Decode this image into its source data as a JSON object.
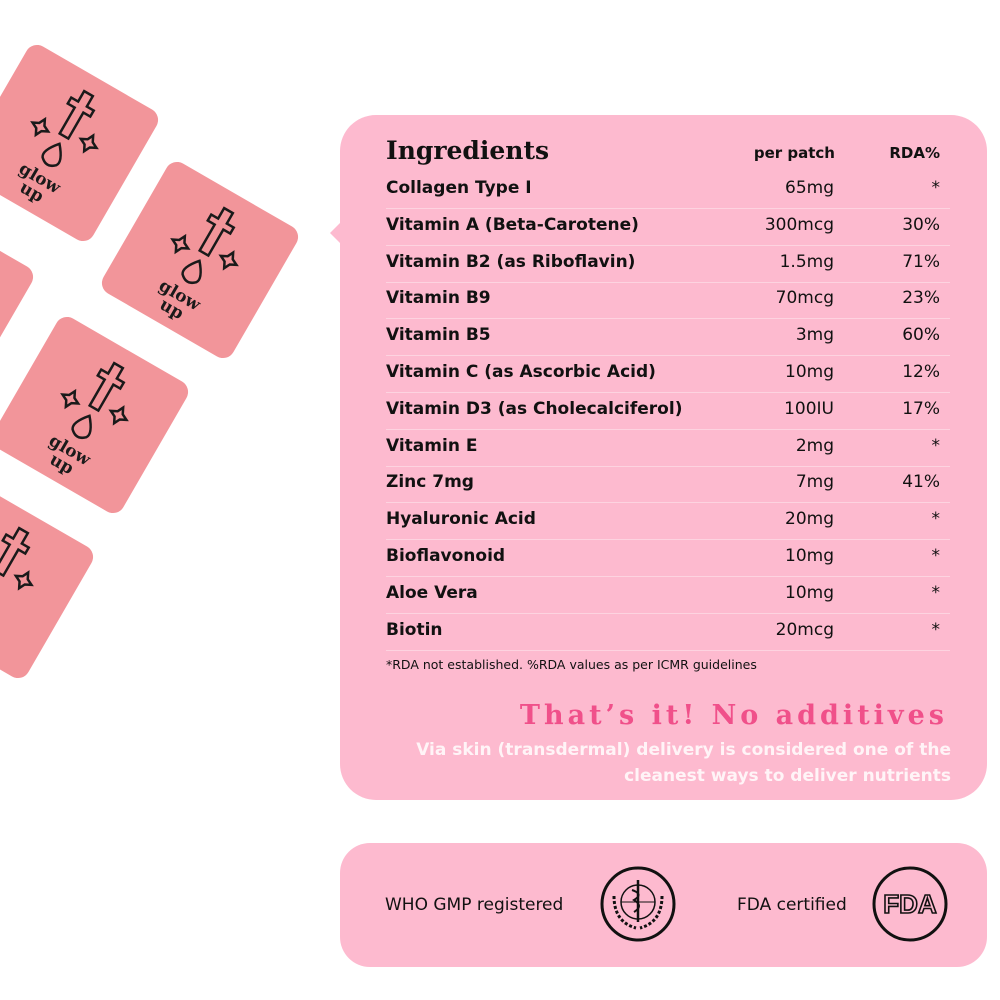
{
  "patches": {
    "text_line1": "glow",
    "text_line2": "up",
    "color": "#f2959a"
  },
  "ingredients": {
    "title": "Ingredients",
    "col_amount": "per patch",
    "col_rda": "RDA%",
    "rows": [
      {
        "name": "Collagen Type I",
        "amount": "65mg",
        "rda": "*"
      },
      {
        "name": "Vitamin A (Beta-Carotene)",
        "amount": "300mcg",
        "rda": "30%"
      },
      {
        "name": "Vitamin B2 (as Riboflavin)",
        "amount": "1.5mg",
        "rda": "71%"
      },
      {
        "name": "Vitamin B9",
        "amount": "70mcg",
        "rda": "23%"
      },
      {
        "name": "Vitamin B5",
        "amount": "3mg",
        "rda": "60%"
      },
      {
        "name": "Vitamin C (as Ascorbic Acid)",
        "amount": "10mg",
        "rda": "12%"
      },
      {
        "name": "Vitamin D3 (as Cholecalciferol)",
        "amount": "100IU",
        "rda": "17%"
      },
      {
        "name": "Vitamin E",
        "amount": "2mg",
        "rda": "*"
      },
      {
        "name": "Zinc 7mg",
        "amount": "7mg",
        "rda": "41%"
      },
      {
        "name": "Hyaluronic Acid",
        "amount": "20mg",
        "rda": "*"
      },
      {
        "name": "Bioflavonoid",
        "amount": "10mg",
        "rda": "*"
      },
      {
        "name": "Aloe Vera",
        "amount": "10mg",
        "rda": "*"
      },
      {
        "name": "Biotin",
        "amount": "20mcg",
        "rda": "*"
      }
    ],
    "footnote": "*RDA not established. %RDA values as per ICMR guidelines",
    "tagline": "That’s it! No additives",
    "subtext": "Via skin (transdermal) delivery is considered one of the cleanest ways to deliver nutrients"
  },
  "certifications": [
    {
      "label": "WHO GMP registered",
      "icon": "who-logo-icon"
    },
    {
      "label": "FDA certified",
      "icon": "fda-logo-icon",
      "logo_text": "FDA"
    }
  ],
  "colors": {
    "panel": "#fdbacf",
    "accent": "#f0508a",
    "patch": "#f2959a"
  }
}
